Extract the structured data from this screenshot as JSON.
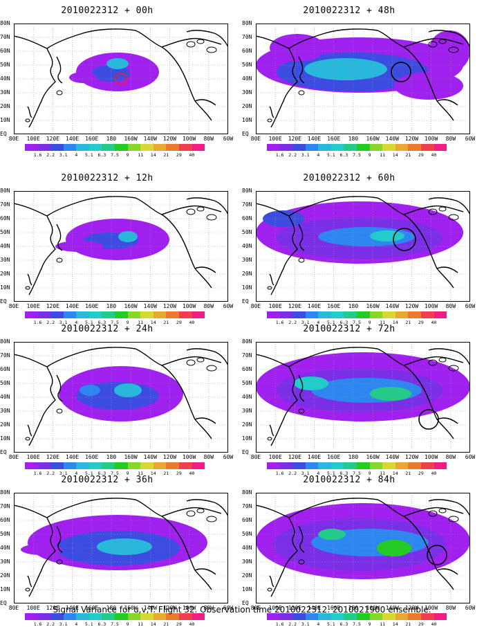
{
  "footer": "Signal Variance for u,v,T. Flight 32. Observation time 2010022312. 2010021900 ensemble.",
  "lon_labels": [
    "80E",
    "100E",
    "120E",
    "140E",
    "160E",
    "180",
    "160W",
    "140W",
    "120W",
    "100W",
    "80W",
    "60W"
  ],
  "lat_labels": [
    "80N",
    "70N",
    "60N",
    "50N",
    "40N",
    "30N",
    "20N",
    "10N",
    "EQ"
  ],
  "colorbar": {
    "labels": [
      "1.6",
      "2.2",
      "3.1",
      "4",
      "5.1",
      "6.3",
      "7.5",
      "9",
      "11",
      "14",
      "21",
      "29",
      "40"
    ],
    "colors": [
      "#a020f0",
      "#7a2ee6",
      "#3c4be0",
      "#2e86f0",
      "#27b8dc",
      "#22cccc",
      "#22cc88",
      "#22cc22",
      "#88d62a",
      "#d8d832",
      "#e8a832",
      "#ec7a2e",
      "#f04050",
      "#f01e82"
    ]
  },
  "panels": [
    {
      "title": "2010022312 + 00h",
      "circle_color": "#ff1a1a"
    },
    {
      "title": "2010022312 + 48h",
      "circle_color": "#000000"
    },
    {
      "title": "2010022312 + 12h",
      "circle_color": ""
    },
    {
      "title": "2010022312 + 60h",
      "circle_color": "#000000"
    },
    {
      "title": "2010022312 + 24h",
      "circle_color": ""
    },
    {
      "title": "2010022312 + 72h",
      "circle_color": "#000000"
    },
    {
      "title": "2010022312 + 36h",
      "circle_color": ""
    },
    {
      "title": "2010022312 + 84h",
      "circle_color": "#000000"
    }
  ]
}
